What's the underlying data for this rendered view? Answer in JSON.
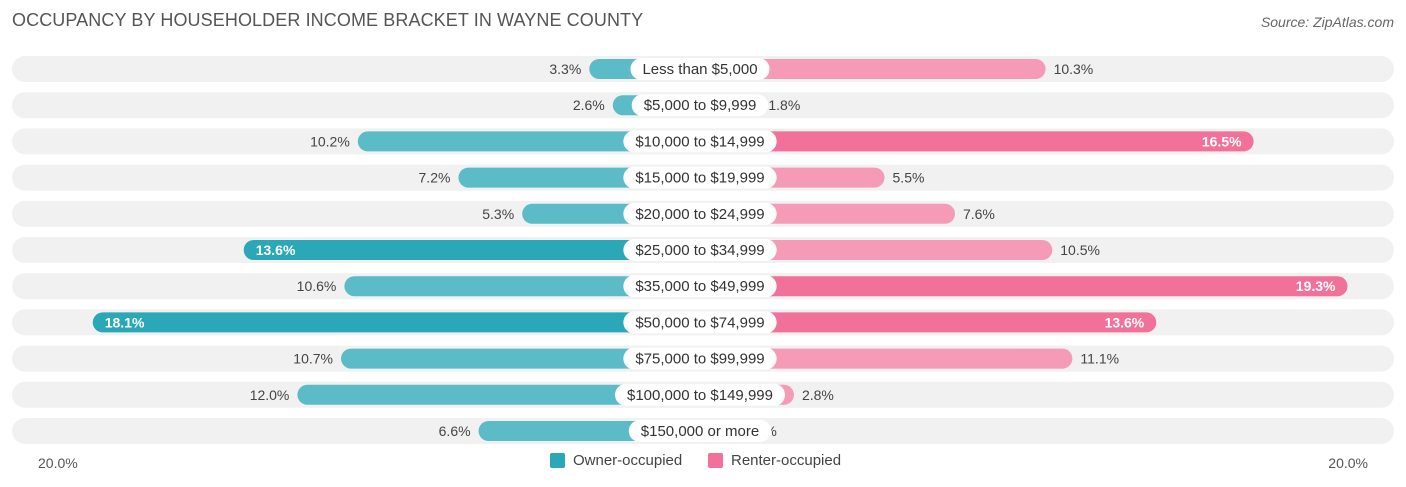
{
  "header": {
    "title": "OCCUPANCY BY HOUSEHOLDER INCOME BRACKET IN WAYNE COUNTY",
    "source": "Source: ZipAtlas.com"
  },
  "axis": {
    "left_label": "20.0%",
    "right_label": "20.0%"
  },
  "legend": {
    "owner": "Owner-occupied",
    "renter": "Renter-occupied"
  },
  "colors": {
    "owner": "#5bbcc8",
    "owner_strong": "#2aa8b8",
    "renter": "#f59ab7",
    "renter_strong": "#f2719a",
    "track": "#f1f1f1"
  },
  "chart_data": {
    "type": "bar",
    "orientation": "horizontal-diverging",
    "title": "OCCUPANCY BY HOUSEHOLDER INCOME BRACKET IN WAYNE COUNTY",
    "xlim": [
      -20,
      20
    ],
    "categories": [
      "Less than $5,000",
      "$5,000 to $9,999",
      "$10,000 to $14,999",
      "$15,000 to $19,999",
      "$20,000 to $24,999",
      "$25,000 to $34,999",
      "$35,000 to $49,999",
      "$50,000 to $74,999",
      "$75,000 to $99,999",
      "$100,000 to $149,999",
      "$150,000 or more"
    ],
    "series": [
      {
        "name": "Owner-occupied",
        "values": [
          3.3,
          2.6,
          10.2,
          7.2,
          5.3,
          13.6,
          10.6,
          18.1,
          10.7,
          12.0,
          6.6
        ],
        "labels": [
          "3.3%",
          "2.6%",
          "10.2%",
          "7.2%",
          "5.3%",
          "13.6%",
          "10.6%",
          "18.1%",
          "10.7%",
          "12.0%",
          "6.6%"
        ]
      },
      {
        "name": "Renter-occupied",
        "values": [
          10.3,
          1.8,
          16.5,
          5.5,
          7.6,
          10.5,
          19.3,
          13.6,
          11.1,
          2.8,
          1.1
        ],
        "labels": [
          "10.3%",
          "1.8%",
          "16.5%",
          "5.5%",
          "7.6%",
          "10.5%",
          "19.3%",
          "13.6%",
          "11.1%",
          "2.8%",
          "1.1%"
        ]
      }
    ],
    "legend_position": "bottom-center"
  }
}
